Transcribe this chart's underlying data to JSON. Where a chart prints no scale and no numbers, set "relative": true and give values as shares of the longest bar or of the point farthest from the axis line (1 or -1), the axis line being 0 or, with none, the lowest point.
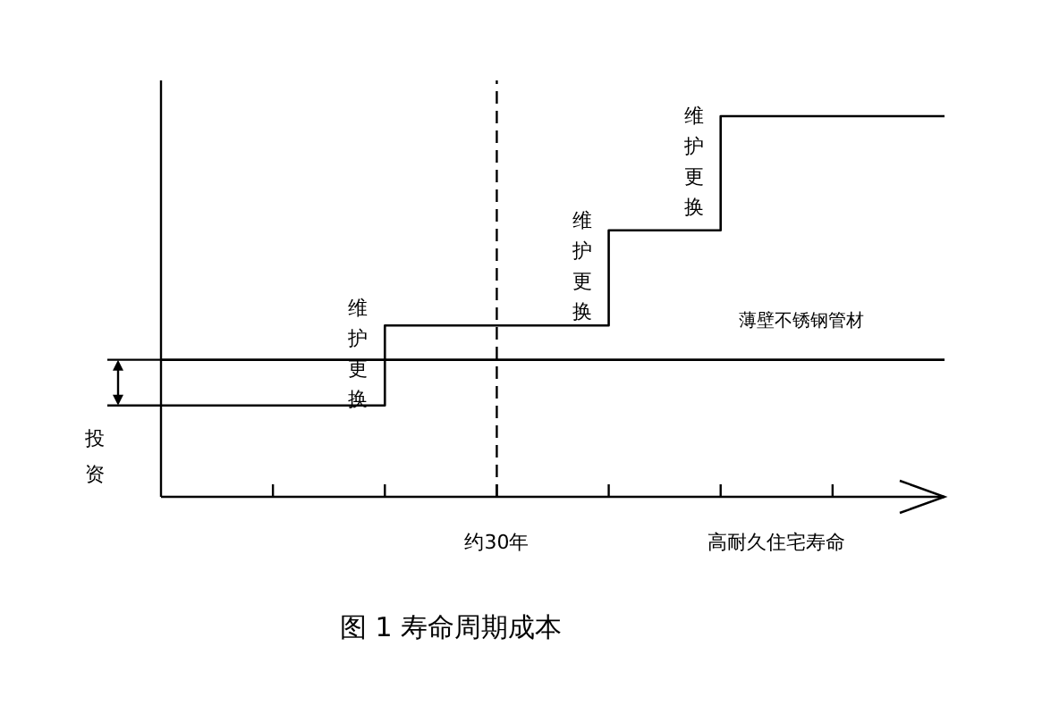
{
  "chart_data": {
    "type": "step",
    "title": "图 1 寿命周期成本",
    "ylabel": "投资",
    "annotations": [
      "维护更换",
      "维护更换",
      "维护更换"
    ],
    "categories": [
      null,
      null,
      null,
      null,
      null,
      null,
      "约30年",
      null,
      null,
      null,
      null,
      "高耐久住宅寿命",
      null,
      null,
      null
    ],
    "relative": true,
    "series": [
      {
        "color": "#000000",
        "values": [
          0.24,
          0.24,
          0.24,
          0.24,
          0.45,
          0.45,
          0.45,
          0.45,
          0.7,
          0.7,
          1,
          1,
          1,
          1,
          1
        ]
      },
      {
        "type": "line",
        "name": "薄壁不锈钢管材",
        "color": "#000000",
        "values": [
          0.36,
          0.36,
          0.36,
          0.36,
          0.36,
          0.36,
          0.36,
          0.36,
          0.36,
          0.36,
          0.36,
          0.36,
          0.36,
          0.36,
          0.36
        ]
      }
    ],
    "ref_lines": [
      {
        "axis": "x",
        "value": "约30年",
        "line_style": "dashed"
      }
    ]
  }
}
